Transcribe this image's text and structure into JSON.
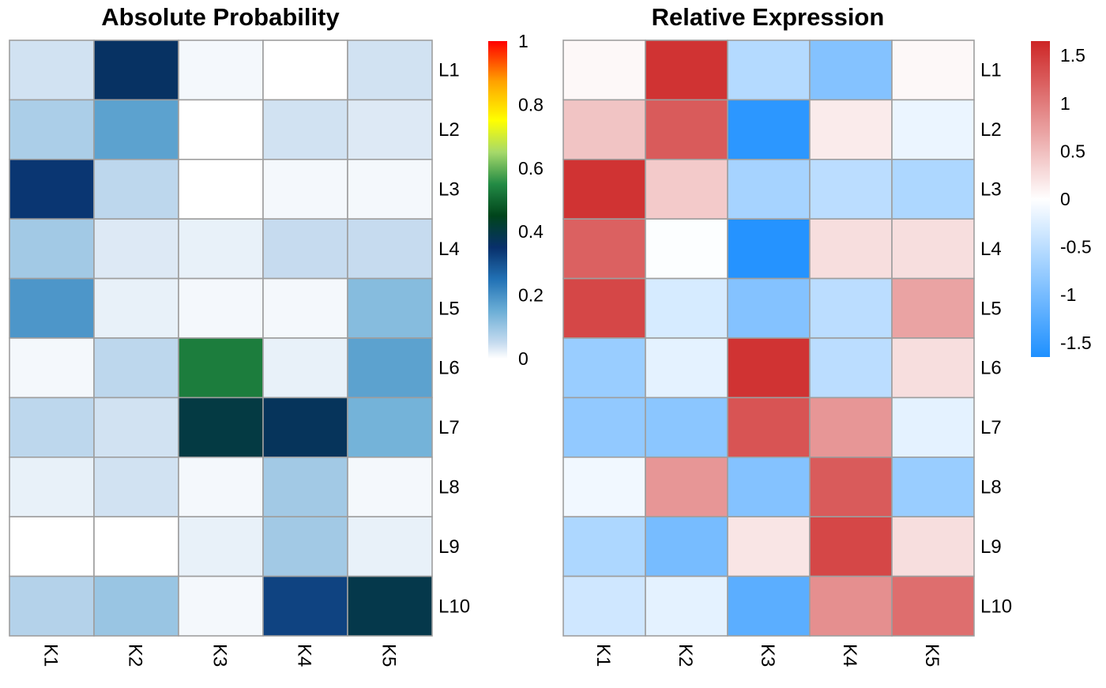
{
  "chart_data": [
    {
      "type": "heatmap",
      "title": "Absolute Probability",
      "rows": [
        "L1",
        "L2",
        "L3",
        "L4",
        "L5",
        "L6",
        "L7",
        "L8",
        "L9",
        "L10"
      ],
      "columns": [
        "K1",
        "K2",
        "K3",
        "K4",
        "K5"
      ],
      "values": [
        [
          0.04,
          0.36,
          0.01,
          0.0,
          0.04
        ],
        [
          0.08,
          0.17,
          0.0,
          0.04,
          0.03
        ],
        [
          0.34,
          0.06,
          0.0,
          0.01,
          0.01
        ],
        [
          0.09,
          0.03,
          0.02,
          0.05,
          0.05
        ],
        [
          0.19,
          0.02,
          0.01,
          0.01,
          0.12
        ],
        [
          0.01,
          0.06,
          0.53,
          0.02,
          0.17
        ],
        [
          0.06,
          0.04,
          0.4,
          0.37,
          0.14
        ],
        [
          0.02,
          0.04,
          0.01,
          0.09,
          0.01
        ],
        [
          0.0,
          0.0,
          0.02,
          0.09,
          0.02
        ],
        [
          0.07,
          0.1,
          0.01,
          0.32,
          0.39
        ]
      ],
      "colorbar": {
        "range": [
          0,
          1
        ],
        "ticks": [
          "0",
          "0.2",
          "0.4",
          "0.6",
          "0.8",
          "1"
        ],
        "tick_values": [
          0,
          0.2,
          0.4,
          0.6,
          0.8,
          1
        ],
        "colors": [
          "#ffffff",
          "#c6dbef",
          "#6baed6",
          "#2171b5",
          "#08306b",
          "#00441b",
          "#238b45",
          "#a6d96a",
          "#ffff00",
          "#ffa500",
          "#ff0000"
        ],
        "color_stops": [
          0,
          0.05,
          0.15,
          0.25,
          0.35,
          0.45,
          0.55,
          0.65,
          0.75,
          0.87,
          1.0
        ]
      }
    },
    {
      "type": "heatmap",
      "title": "Relative Expression",
      "rows": [
        "L1",
        "L2",
        "L3",
        "L4",
        "L5",
        "L6",
        "L7",
        "L8",
        "L9",
        "L10"
      ],
      "columns": [
        "K1",
        "K2",
        "K3",
        "K4",
        "K5"
      ],
      "values": [
        [
          0.05,
          1.55,
          -0.55,
          -0.9,
          0.05
        ],
        [
          0.45,
          1.25,
          -1.55,
          0.15,
          -0.15
        ],
        [
          1.55,
          0.4,
          -0.65,
          -0.5,
          -0.6
        ],
        [
          1.2,
          -0.02,
          -1.6,
          0.25,
          0.25
        ],
        [
          1.4,
          -0.3,
          -0.9,
          -0.5,
          0.7
        ],
        [
          -0.75,
          -0.2,
          1.55,
          -0.5,
          0.25
        ],
        [
          -0.8,
          -0.85,
          1.3,
          0.8,
          -0.2
        ],
        [
          -0.1,
          0.8,
          -0.9,
          1.25,
          -0.75
        ],
        [
          -0.6,
          -1.0,
          0.2,
          1.4,
          0.25
        ],
        [
          -0.35,
          -0.2,
          -1.2,
          0.85,
          1.1
        ]
      ],
      "colorbar": {
        "range": [
          -1.65,
          1.65
        ],
        "ticks": [
          "1.5",
          "1",
          "0.5",
          "0",
          "-0.5",
          "-1",
          "-1.5"
        ],
        "tick_values": [
          1.5,
          1,
          0.5,
          0,
          -0.5,
          -1,
          -1.5
        ],
        "colors": [
          "#1e90ff",
          "#ffffff",
          "#cd2626"
        ]
      }
    }
  ]
}
